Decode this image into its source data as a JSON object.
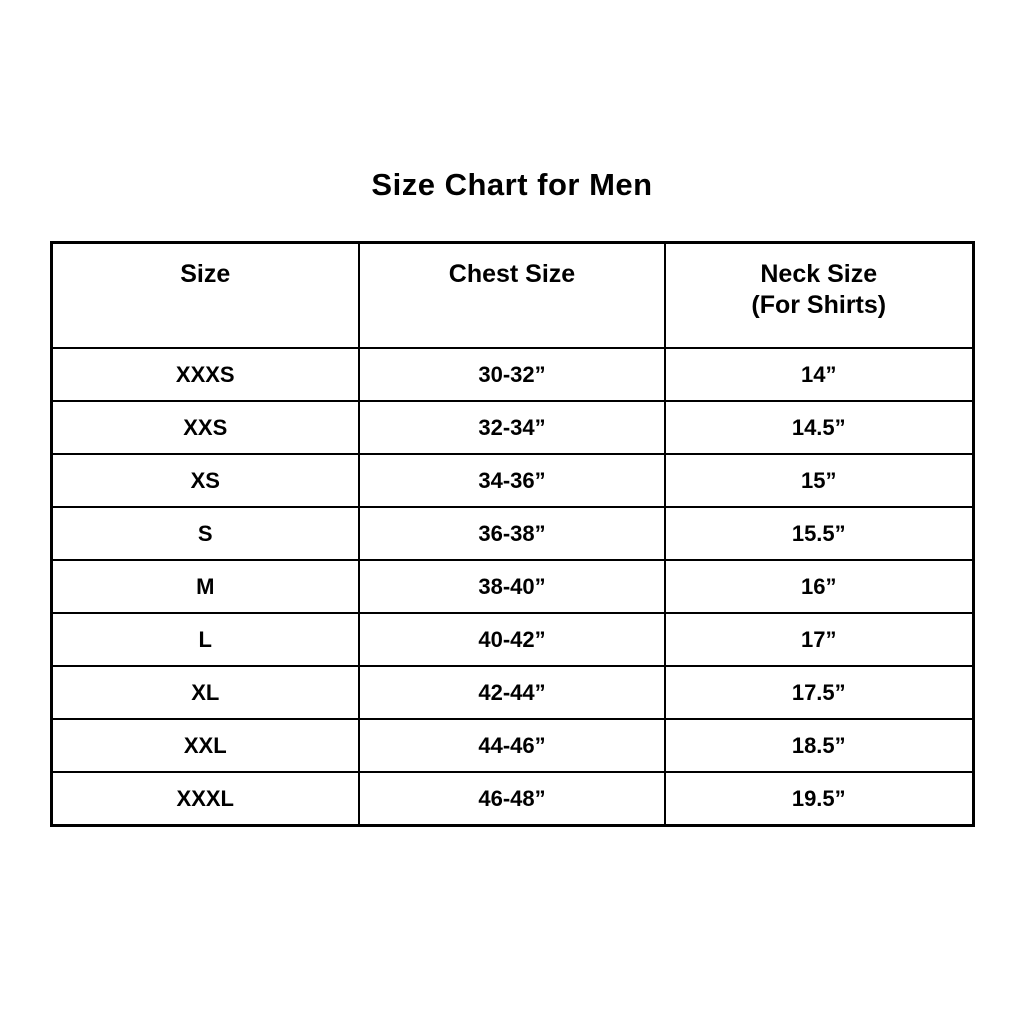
{
  "page": {
    "title": "Size Chart for Men"
  },
  "table": {
    "columns": [
      {
        "label": "Size"
      },
      {
        "label": "Chest Size"
      },
      {
        "label": "Neck Size",
        "sublabel": "(For Shirts)"
      }
    ],
    "rows": [
      {
        "size": "XXXS",
        "chest": "30-32”",
        "neck": "14”"
      },
      {
        "size": "XXS",
        "chest": "32-34”",
        "neck": "14.5”"
      },
      {
        "size": "XS",
        "chest": "34-36”",
        "neck": "15”"
      },
      {
        "size": "S",
        "chest": "36-38”",
        "neck": "15.5”"
      },
      {
        "size": "M",
        "chest": "38-40”",
        "neck": "16”"
      },
      {
        "size": "L",
        "chest": "40-42”",
        "neck": "17”"
      },
      {
        "size": "XL",
        "chest": "42-44”",
        "neck": "17.5”"
      },
      {
        "size": "XXL",
        "chest": "44-46”",
        "neck": "18.5”"
      },
      {
        "size": "XXXL",
        "chest": "46-48”",
        "neck": "19.5”"
      }
    ]
  },
  "chart_data": {
    "type": "table",
    "title": "Size Chart for Men",
    "columns": [
      "Size",
      "Chest Size",
      "Neck Size (For Shirts)"
    ],
    "rows": [
      [
        "XXXS",
        "30-32”",
        "14”"
      ],
      [
        "XXS",
        "32-34”",
        "14.5”"
      ],
      [
        "XS",
        "34-36”",
        "15”"
      ],
      [
        "S",
        "36-38”",
        "15.5”"
      ],
      [
        "M",
        "38-40”",
        "16”"
      ],
      [
        "L",
        "40-42”",
        "17”"
      ],
      [
        "XL",
        "42-44”",
        "17.5”"
      ],
      [
        "XXL",
        "44-46”",
        "18.5”"
      ],
      [
        "XXXL",
        "46-48”",
        "19.5”"
      ]
    ],
    "notes": "Static size-chart infographic; black bold text and grid on white background"
  }
}
